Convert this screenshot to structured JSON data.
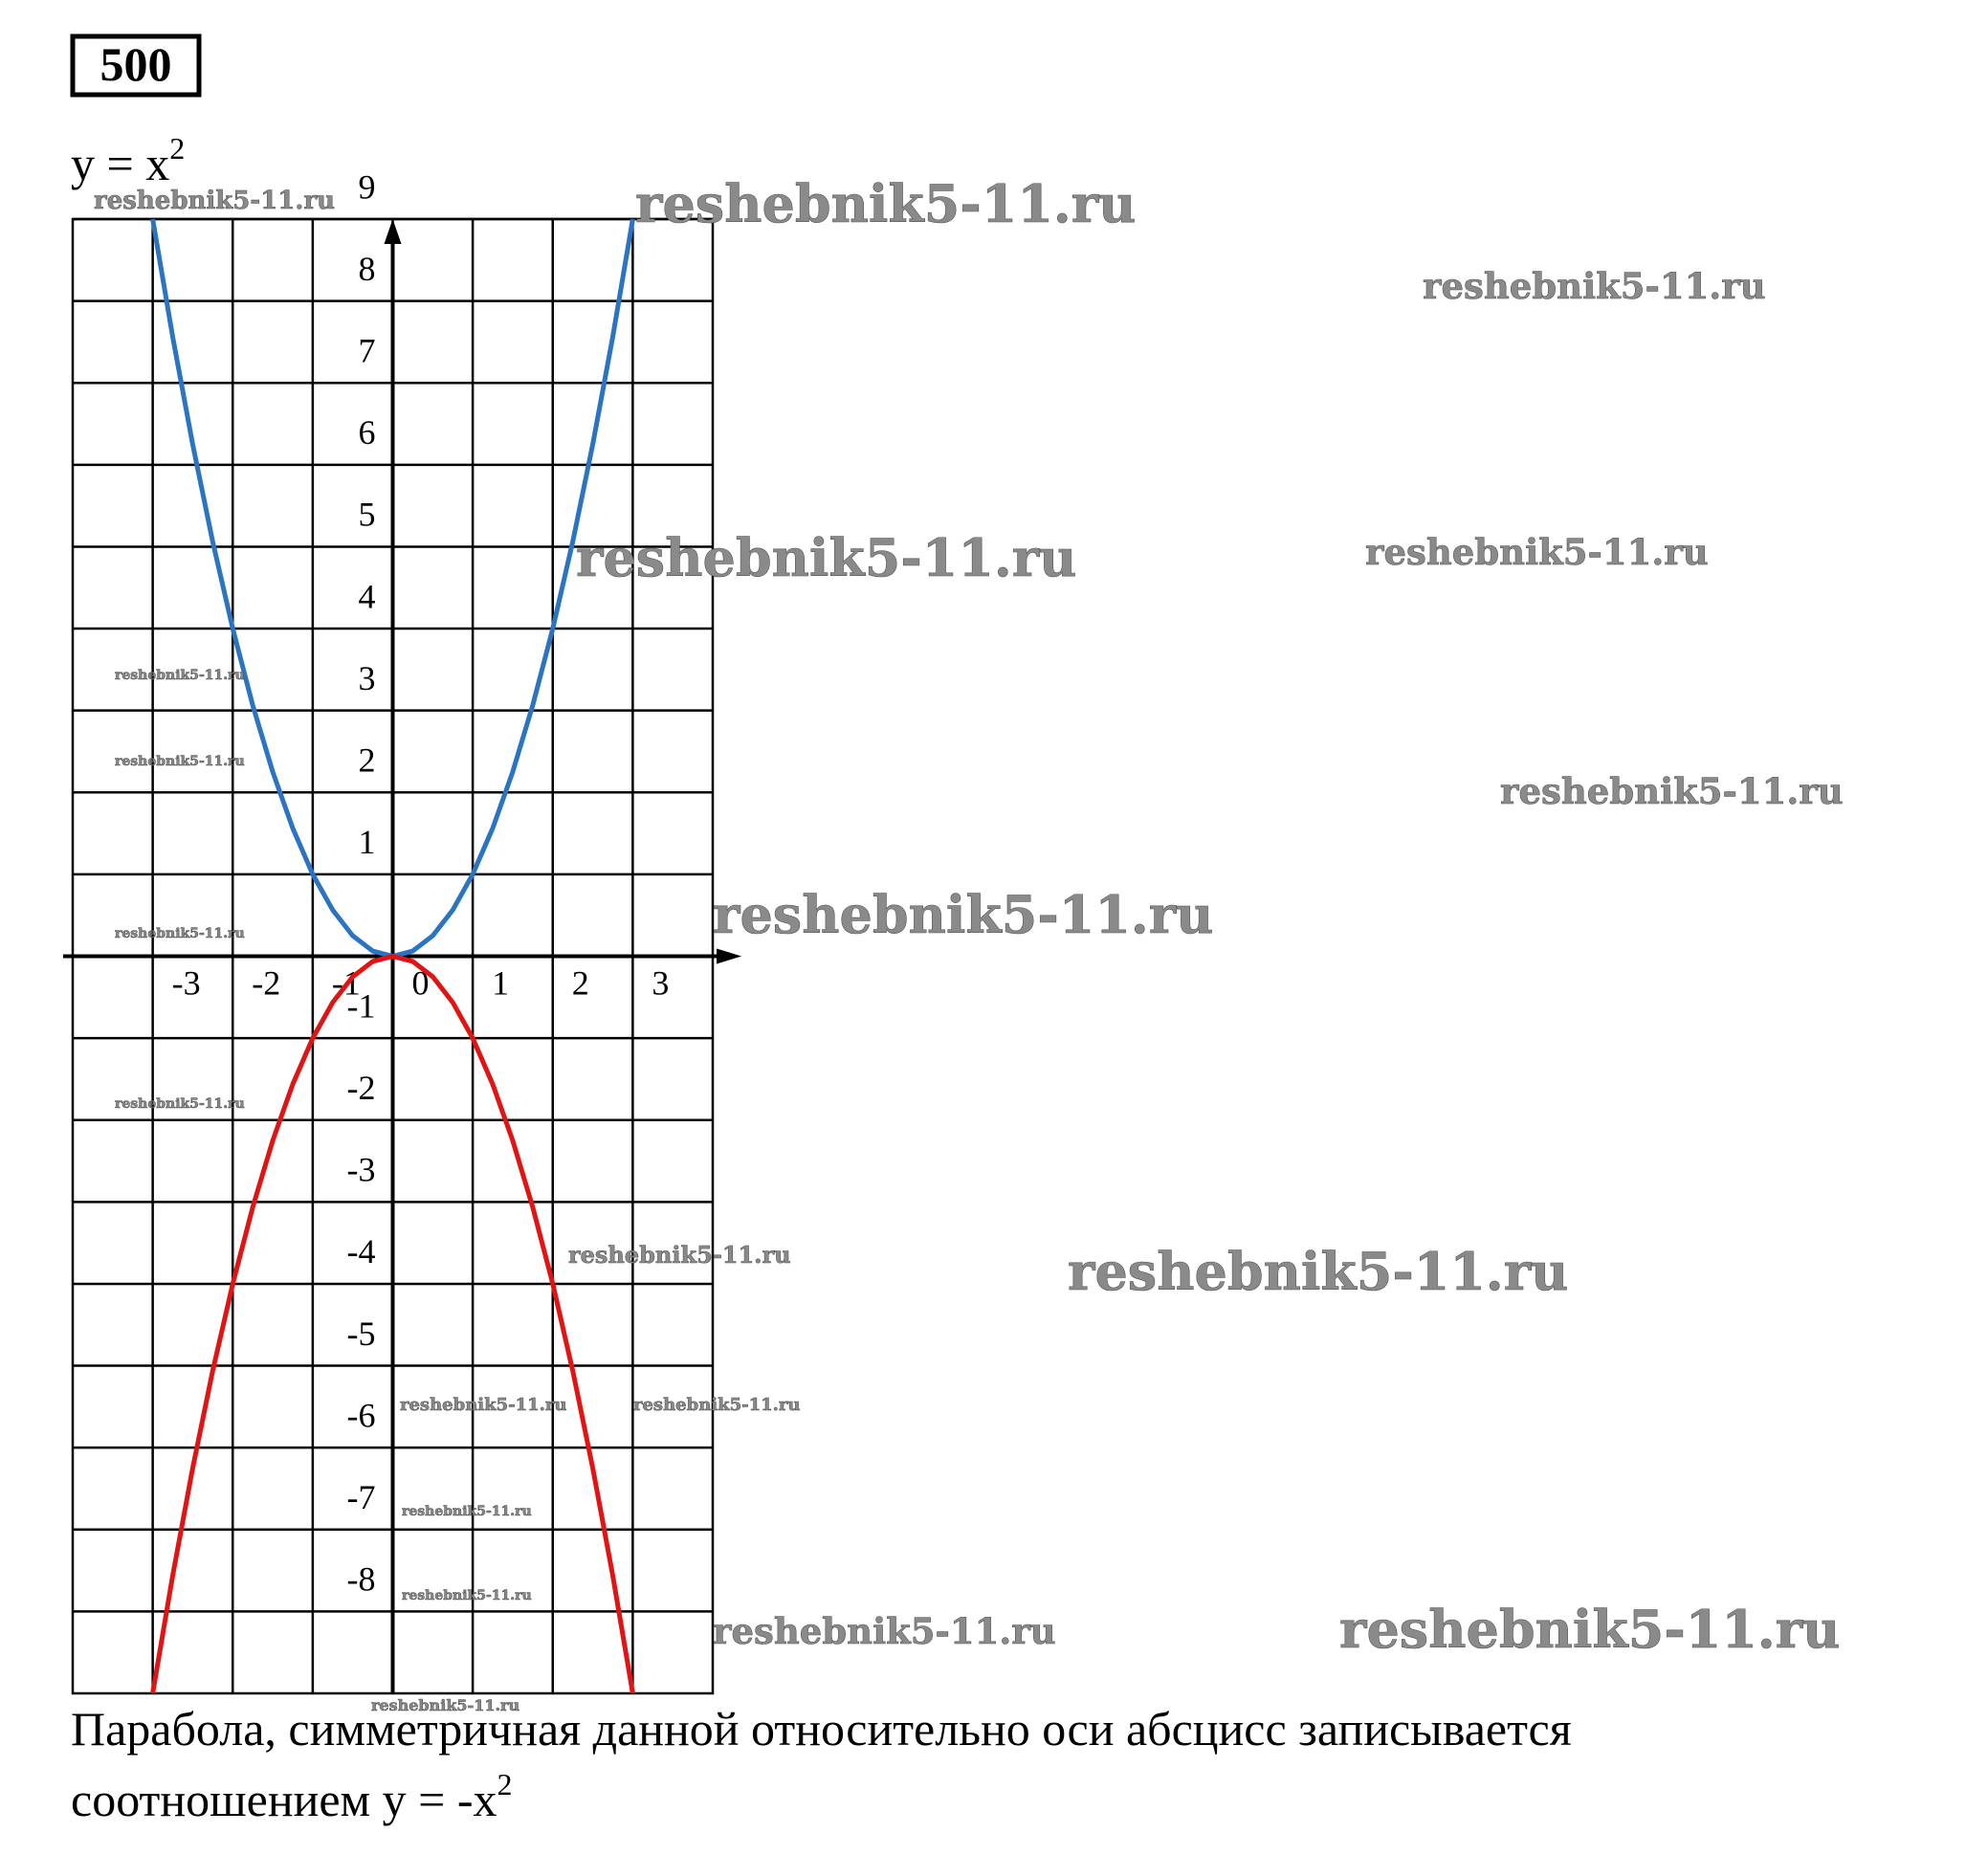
{
  "problem_number": "500",
  "formula": {
    "text": "y = x",
    "exponent": "2"
  },
  "chart_data": {
    "type": "line",
    "x": [
      -3,
      -2.75,
      -2.5,
      -2.25,
      -2,
      -1.75,
      -1.5,
      -1.25,
      -1,
      -0.75,
      -0.5,
      -0.25,
      0,
      0.25,
      0.5,
      0.75,
      1,
      1.25,
      1.5,
      1.75,
      2,
      2.25,
      2.5,
      2.75,
      3
    ],
    "series": [
      {
        "color": "#2b74c2",
        "values": [
          9,
          7.5625,
          6.25,
          5.0625,
          4,
          3.0625,
          2.25,
          1.5625,
          1,
          0.5625,
          0.25,
          0.0625,
          0,
          0.0625,
          0.25,
          0.5625,
          1,
          1.5625,
          2.25,
          3.0625,
          4,
          5.0625,
          6.25,
          7.5625,
          9
        ]
      },
      {
        "color": "#e01414",
        "values": [
          -9,
          -7.5625,
          -6.25,
          -5.0625,
          -4,
          -3.0625,
          -2.25,
          -1.5625,
          -1,
          -0.5625,
          -0.25,
          -0.0625,
          0,
          -0.0625,
          -0.25,
          -0.5625,
          -1,
          -1.5625,
          -2.25,
          -3.0625,
          -4,
          -5.0625,
          -6.25,
          -7.5625,
          -9
        ]
      }
    ],
    "xlim": [
      -4,
      4
    ],
    "ylim": [
      -9,
      9
    ],
    "xticks": [
      -3,
      -2,
      -1,
      0,
      1,
      2,
      3
    ],
    "yticks": [
      -8,
      -7,
      -6,
      -5,
      -4,
      -3,
      -2,
      -1,
      1,
      2,
      3,
      4,
      5,
      6,
      7,
      8,
      9
    ],
    "grid": true
  },
  "caption": {
    "line1": "Парабола, симметричная данной относительно оси абсцисс записывается",
    "line2": {
      "text": "соотношением y = -x",
      "exponent": "2"
    }
  },
  "watermarks": [
    "reshebnik5-11.ru",
    "reshebnik5-11.ru",
    "reshebnik5-11.ru",
    "reshebnik5-11.ru",
    "reshebnik5-11.ru",
    "reshebnik5-11.ru",
    "reshebnik5-11.ru",
    "reshebnik5-11.ru",
    "reshebnik5-11.ru",
    "reshebnik5-11.ru",
    "reshebnik5-11.ru",
    "reshebnik5-11.ru",
    "reshebnik5-11.ru",
    "reshebnik5-11.ru",
    "reshebnik5-11.ru",
    "reshebnik5-11.ru",
    "reshebnik5-11.ru",
    "reshebnik5-11.ru",
    "reshebnik5-11.ru",
    "reshebnik5-11.ru"
  ]
}
